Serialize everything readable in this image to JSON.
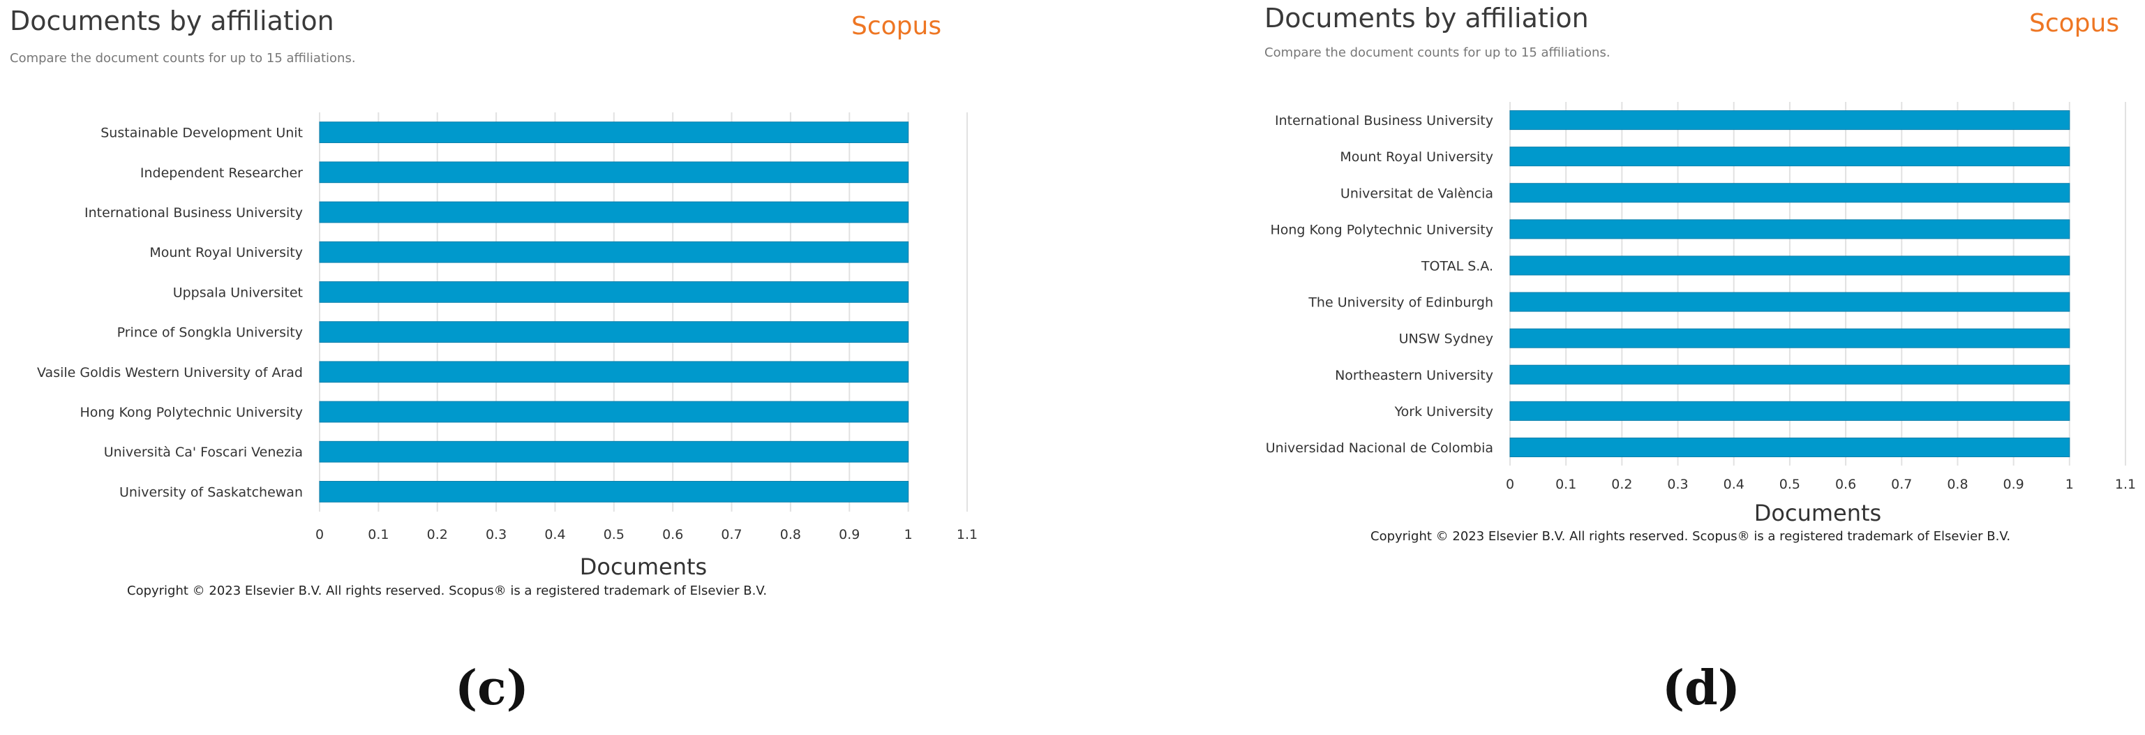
{
  "panels": [
    {
      "title": "Documents by affiliation",
      "subtitle": "Compare the document counts for up to 15 affiliations.",
      "brand": "Scopus",
      "copyright": "Copyright © 2023 Elsevier B.V. All rights reserved. Scopus® is a registered trademark of Elsevier B.V.",
      "caption": "(c)"
    },
    {
      "title": "Documents by affiliation",
      "subtitle": "Compare the document counts for up to 15 affiliations.",
      "brand": "Scopus",
      "copyright": "Copyright © 2023 Elsevier B.V. All rights reserved. Scopus® is a registered trademark of Elsevier B.V.",
      "caption": "(d)"
    }
  ],
  "colors": {
    "bar": "#0099cc",
    "bar_stroke": "#0a7fab",
    "brand": "#ee7623",
    "grid": "#e2e2e2"
  },
  "chart_data": [
    {
      "type": "bar",
      "orientation": "horizontal",
      "categories": [
        "Sustainable Development Unit",
        "Independent Researcher",
        "International Business University",
        "Mount Royal University",
        "Uppsala Universitet",
        "Prince of Songkla University",
        "Vasile Goldis Western University of Arad",
        "Hong Kong Polytechnic University",
        "Università Ca' Foscari Venezia",
        "University of Saskatchewan"
      ],
      "values": [
        1,
        1,
        1,
        1,
        1,
        1,
        1,
        1,
        1,
        1
      ],
      "xlabel": "Documents",
      "ylabel": "",
      "xlim": [
        0,
        1.1
      ],
      "xticks": [
        "0",
        "0.1",
        "0.2",
        "0.3",
        "0.4",
        "0.5",
        "0.6",
        "0.7",
        "0.8",
        "0.9",
        "1",
        "1.1"
      ],
      "grid": true
    },
    {
      "type": "bar",
      "orientation": "horizontal",
      "categories": [
        "International Business University",
        "Mount Royal University",
        "Universitat de València",
        "Hong Kong Polytechnic University",
        "TOTAL S.A.",
        "The University of Edinburgh",
        "UNSW Sydney",
        "Northeastern University",
        "York University",
        "Universidad Nacional de Colombia"
      ],
      "values": [
        1,
        1,
        1,
        1,
        1,
        1,
        1,
        1,
        1,
        1
      ],
      "xlabel": "Documents",
      "ylabel": "",
      "xlim": [
        0,
        1.1
      ],
      "xticks": [
        "0",
        "0.1",
        "0.2",
        "0.3",
        "0.4",
        "0.5",
        "0.6",
        "0.7",
        "0.8",
        "0.9",
        "1",
        "1.1"
      ],
      "grid": true
    }
  ]
}
